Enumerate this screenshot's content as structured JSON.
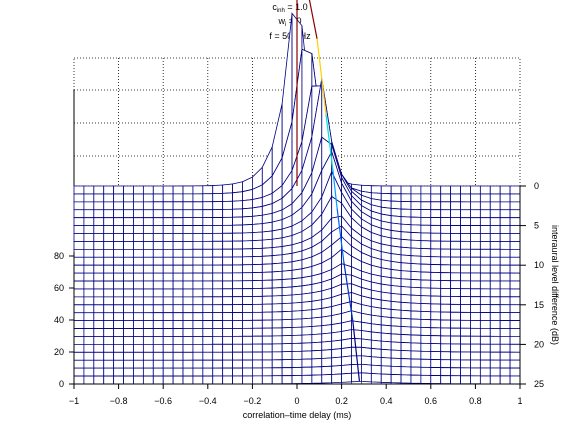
{
  "title": {
    "line1_main": "c",
    "line1_sub": "inh",
    "line1_rest": " = 1.0",
    "line2_main": "w",
    "line2_sub": "i",
    "line2_rest": " = 0",
    "line3": "f = 500 Hz"
  },
  "chart_data": {
    "type": "surface-mesh",
    "xlabel": "correlation–time delay (ms)",
    "ylabel_right": "interaural level difference (dB)",
    "x_ticks": [
      "−1",
      "−0.8",
      "−0.6",
      "−0.4",
      "−0.2",
      "0",
      "0.2",
      "0.4",
      "0.6",
      "0.8",
      "1"
    ],
    "x_tick_values": [
      -1,
      -0.8,
      -0.6,
      -0.4,
      -0.2,
      0,
      0.2,
      0.4,
      0.6,
      0.8,
      1
    ],
    "xlim": [
      -1,
      1
    ],
    "z_ticks": [
      "0",
      "20",
      "40",
      "60",
      "80"
    ],
    "z_tick_values": [
      0,
      20,
      40,
      60,
      80
    ],
    "zlim": [
      0,
      120
    ],
    "ild_ticks": [
      "0",
      "5",
      "10",
      "15",
      "20",
      "25"
    ],
    "ild_tick_values": [
      0,
      5,
      10,
      15,
      20,
      25
    ],
    "ild_lim": [
      0,
      25
    ],
    "grid": true,
    "mesh_color": "#000080",
    "ridge": [
      {
        "ild": 0,
        "x": 0.0,
        "peak": 92
      },
      {
        "ild": 2,
        "x": 0.09,
        "peak": 60
      },
      {
        "ild": 4,
        "x": 0.13,
        "peak": 38
      },
      {
        "ild": 6,
        "x": 0.16,
        "peak": 24
      },
      {
        "ild": 8,
        "x": 0.18,
        "peak": 15
      },
      {
        "ild": 12,
        "x": 0.21,
        "peak": 7
      },
      {
        "ild": 18,
        "x": 0.25,
        "peak": 3
      },
      {
        "ild": 25,
        "x": 0.28,
        "peak": 1
      }
    ]
  }
}
